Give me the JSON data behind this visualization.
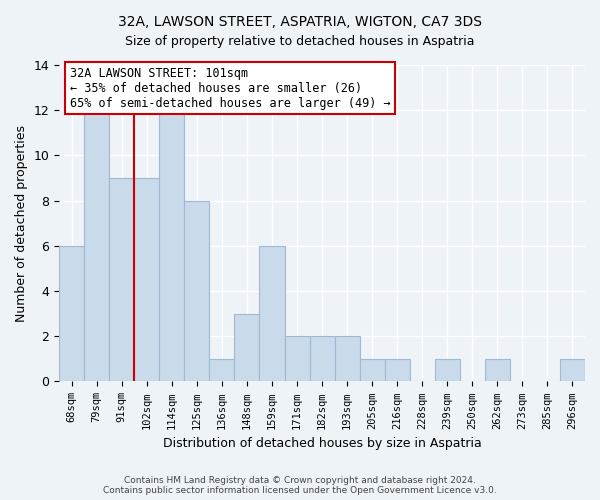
{
  "title": "32A, LAWSON STREET, ASPATRIA, WIGTON, CA7 3DS",
  "subtitle": "Size of property relative to detached houses in Aspatria",
  "xlabel": "Distribution of detached houses by size in Aspatria",
  "ylabel": "Number of detached properties",
  "categories": [
    "68sqm",
    "79sqm",
    "91sqm",
    "102sqm",
    "114sqm",
    "125sqm",
    "136sqm",
    "148sqm",
    "159sqm",
    "171sqm",
    "182sqm",
    "193sqm",
    "205sqm",
    "216sqm",
    "228sqm",
    "239sqm",
    "250sqm",
    "262sqm",
    "273sqm",
    "285sqm",
    "296sqm"
  ],
  "values": [
    6,
    12,
    9,
    9,
    12,
    8,
    1,
    3,
    6,
    2,
    2,
    2,
    1,
    1,
    0,
    1,
    0,
    1,
    0,
    0,
    1
  ],
  "bar_color": "#c9daea",
  "bar_edge_color": "#a0b8d0",
  "vline_x": 2.5,
  "vline_color": "#cc0000",
  "annotation_lines": [
    "32A LAWSON STREET: 101sqm",
    "← 35% of detached houses are smaller (26)",
    "65% of semi-detached houses are larger (49) →"
  ],
  "ylim": [
    0,
    14
  ],
  "yticks": [
    0,
    2,
    4,
    6,
    8,
    10,
    12,
    14
  ],
  "footer": "Contains HM Land Registry data © Crown copyright and database right 2024.\nContains public sector information licensed under the Open Government Licence v3.0.",
  "bg_color": "#eef3f8",
  "plot_bg_color": "#eef3f8",
  "grid_color": "#ffffff"
}
